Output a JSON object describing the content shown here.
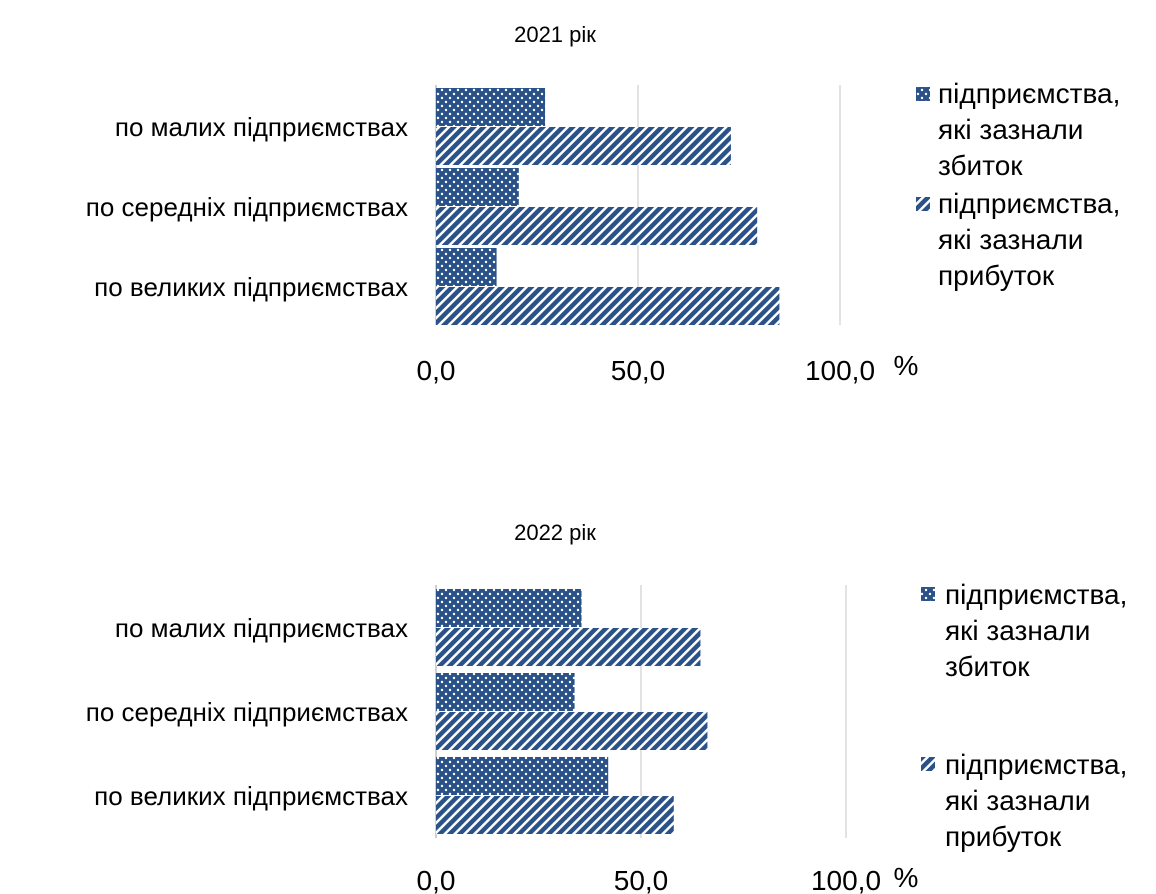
{
  "colors": {
    "bar": "#2b5288",
    "grid": "#d9d9d9",
    "axis": "#bfbfbf"
  },
  "chart_data": [
    {
      "type": "bar",
      "orientation": "horizontal",
      "title": "2021 рік",
      "categories": [
        "по малих підприємствах",
        "по середніх підприємствах",
        "по великих підприємствах"
      ],
      "series": [
        {
          "name": "підприємства, які зазнали збиток",
          "pattern": "dots",
          "values": [
            27.0,
            20.5,
            15.0
          ]
        },
        {
          "name": "підприємства, які зазнали прибуток",
          "pattern": "diagonal-stripes",
          "values": [
            73.0,
            79.5,
            85.0
          ]
        }
      ],
      "xlim": [
        0,
        100
      ],
      "xticks": [
        "0,0",
        "50,0",
        "100,0"
      ],
      "unit": "%",
      "grid": true,
      "legend": "right"
    },
    {
      "type": "bar",
      "orientation": "horizontal",
      "title": "2022 рік",
      "categories": [
        "по малих підприємствах",
        "по середніх підприємствах",
        "по великих підприємствах"
      ],
      "series": [
        {
          "name": "підприємства, які зазнали збиток",
          "pattern": "dots",
          "values": [
            35.5,
            33.8,
            42.0
          ]
        },
        {
          "name": "підприємства, які зазнали прибуток",
          "pattern": "diagonal-stripes",
          "values": [
            64.5,
            66.2,
            58.0
          ]
        }
      ],
      "xlim": [
        0,
        100
      ],
      "xticks": [
        "0,0",
        "50,0",
        "100,0"
      ],
      "unit": "%",
      "grid": true,
      "legend": "right"
    }
  ]
}
